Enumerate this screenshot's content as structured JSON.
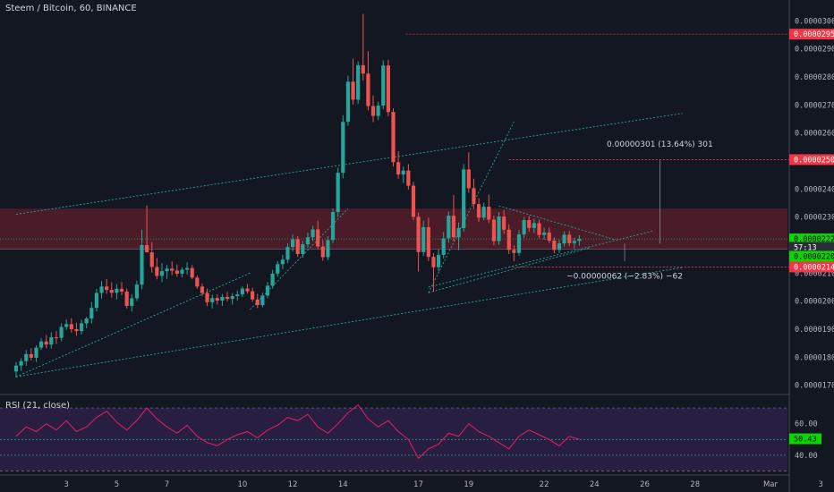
{
  "header": {
    "symbol": "Steem / Bitcoin, 60, BINANCE"
  },
  "rsi_header": {
    "label": "RSI (21, close)"
  },
  "colors": {
    "background": "#131722",
    "up": "#26a69a",
    "down": "#ef5350",
    "grid": "#363a45",
    "text": "#b2b5be",
    "trend": "#26a69a",
    "zone": "#5c1f2a",
    "rsi_line": "#e91e63",
    "rsi_band": "#2a1f45",
    "green_label": "#0bd600",
    "red_label": "#f23645",
    "price_label": "#2a2e39"
  },
  "chart_data": [
    {
      "type": "candlestick",
      "title": "Steem / Bitcoin, 60, BINANCE",
      "x_ticks": [
        "3",
        "5",
        "7",
        "10",
        "12",
        "14",
        "17",
        "19",
        "22",
        "24",
        "26",
        "28",
        "Mar",
        "3"
      ],
      "y_ticks": [
        "0.00003000",
        "0.00002900",
        "0.00002800",
        "0.00002700",
        "0.00002600",
        "0.00002400",
        "0.00002300",
        "0.00002100",
        "0.00002000",
        "0.00001900",
        "0.00001800",
        "0.00001700"
      ],
      "ylim": [
        1.67e-05,
        3.03e-05
      ],
      "price_markers": [
        {
          "value": "0.00002953",
          "price": 2.953e-05,
          "kind": "red"
        },
        {
          "value": "0.00002505",
          "price": 2.505e-05,
          "kind": "red"
        },
        {
          "value": "0.00002222",
          "price": 2.222e-05,
          "kind": "green"
        },
        {
          "value": "57:13",
          "price": 2.192e-05,
          "kind": "dark"
        },
        {
          "value": "0.00002205",
          "price": 2.16e-05,
          "kind": "green"
        },
        {
          "value": "0.00002142",
          "price": 2.122e-05,
          "kind": "red"
        }
      ],
      "annotations": [
        {
          "text": "0.00000301 (13.64%) 301",
          "x_day": 26.6,
          "price": 2.56e-05
        },
        {
          "text": "−0.00000062 (−2.83%) −62",
          "x_day": 25.2,
          "price": 2.09e-05
        }
      ],
      "resistance_zone": [
        2.185e-05,
        2.33e-05
      ],
      "ohlc": [
        [
          1.0,
          1.749e-05,
          1.783e-05,
          1.727e-05,
          1.77e-05
        ],
        [
          1.2,
          1.77e-05,
          1.796e-05,
          1.751e-05,
          1.786e-05
        ],
        [
          1.4,
          1.786e-05,
          1.826e-05,
          1.769e-05,
          1.811e-05
        ],
        [
          1.6,
          1.811e-05,
          1.832e-05,
          1.788e-05,
          1.798e-05
        ],
        [
          1.8,
          1.798e-05,
          1.842e-05,
          1.783e-05,
          1.834e-05
        ],
        [
          2.0,
          1.834e-05,
          1.868e-05,
          1.826e-05,
          1.856e-05
        ],
        [
          2.2,
          1.856e-05,
          1.879e-05,
          1.831e-05,
          1.845e-05
        ],
        [
          2.4,
          1.845e-05,
          1.889e-05,
          1.831e-05,
          1.871e-05
        ],
        [
          2.6,
          1.871e-05,
          1.893e-05,
          1.847e-05,
          1.869e-05
        ],
        [
          2.8,
          1.869e-05,
          1.921e-05,
          1.857e-05,
          1.908e-05
        ],
        [
          3.0,
          1.908e-05,
          1.935e-05,
          1.898e-05,
          1.918e-05
        ],
        [
          3.2,
          1.918e-05,
          1.939e-05,
          1.887e-05,
          1.9e-05
        ],
        [
          3.4,
          1.9e-05,
          1.923e-05,
          1.877e-05,
          1.893e-05
        ],
        [
          3.6,
          1.893e-05,
          1.933e-05,
          1.881e-05,
          1.921e-05
        ],
        [
          3.8,
          1.921e-05,
          1.944e-05,
          1.903e-05,
          1.938e-05
        ],
        [
          4.0,
          1.938e-05,
          1.997e-05,
          1.92e-05,
          1.976e-05
        ],
        [
          4.2,
          1.976e-05,
          2.044e-05,
          1.963e-05,
          2.029e-05
        ],
        [
          4.4,
          2.029e-05,
          2.072e-05,
          2.009e-05,
          2.052e-05
        ],
        [
          4.6,
          2.052e-05,
          2.079e-05,
          2.026e-05,
          2.04e-05
        ],
        [
          4.8,
          2.04e-05,
          2.067e-05,
          2.012e-05,
          2.03e-05
        ],
        [
          5.0,
          2.03e-05,
          2.061e-05,
          2.006e-05,
          2.044e-05
        ],
        [
          5.2,
          2.044e-05,
          2.068e-05,
          2.021e-05,
          2.034e-05
        ],
        [
          5.4,
          2.034e-05,
          2.045e-05,
          1.974e-05,
          1.983e-05
        ],
        [
          5.6,
          1.983e-05,
          2.025e-05,
          1.963e-05,
          2.01e-05
        ],
        [
          5.8,
          2.01e-05,
          2.073e-05,
          2.001e-05,
          2.059e-05
        ],
        [
          6.0,
          2.059e-05,
          2.255e-05,
          2.042e-05,
          2.2e-05
        ],
        [
          6.2,
          2.2e-05,
          2.341e-05,
          2.181e-05,
          2.174e-05
        ],
        [
          6.4,
          2.174e-05,
          2.211e-05,
          2.102e-05,
          2.122e-05
        ],
        [
          6.6,
          2.122e-05,
          2.154e-05,
          2.078e-05,
          2.09e-05
        ],
        [
          6.8,
          2.09e-05,
          2.135e-05,
          2.068e-05,
          2.107e-05
        ],
        [
          7.0,
          2.107e-05,
          2.129e-05,
          2.079e-05,
          2.116e-05
        ],
        [
          7.2,
          2.116e-05,
          2.142e-05,
          2.093e-05,
          2.109e-05
        ],
        [
          7.4,
          2.109e-05,
          2.131e-05,
          2.087e-05,
          2.098e-05
        ],
        [
          7.6,
          2.098e-05,
          2.121e-05,
          2.085e-05,
          2.112e-05
        ],
        [
          7.8,
          2.112e-05,
          2.138e-05,
          2.095e-05,
          2.118e-05
        ],
        [
          8.0,
          2.118e-05,
          2.129e-05,
          2.078e-05,
          2.084e-05
        ],
        [
          8.2,
          2.084e-05,
          2.092e-05,
          2.044e-05,
          2.052e-05
        ],
        [
          8.4,
          2.052e-05,
          2.063e-05,
          2.018e-05,
          2.029e-05
        ],
        [
          8.6,
          2.029e-05,
          2.045e-05,
          1.982e-05,
          1.996e-05
        ],
        [
          8.8,
          1.996e-05,
          2.023e-05,
          1.974e-05,
          2.011e-05
        ],
        [
          9.0,
          2.011e-05,
          2.024e-05,
          1.988e-05,
          2.002e-05
        ],
        [
          9.2,
          2.002e-05,
          2.025e-05,
          1.983e-05,
          2.015e-05
        ],
        [
          9.4,
          2.015e-05,
          2.033e-05,
          1.999e-05,
          2.008e-05
        ],
        [
          9.6,
          2.008e-05,
          2.029e-05,
          1.988e-05,
          2.018e-05
        ],
        [
          9.8,
          2.018e-05,
          2.038e-05,
          2.002e-05,
          2.024e-05
        ],
        [
          10.0,
          2.024e-05,
          2.052e-05,
          2.015e-05,
          2.045e-05
        ],
        [
          10.2,
          2.045e-05,
          2.061e-05,
          2.027e-05,
          2.035e-05
        ],
        [
          10.4,
          2.035e-05,
          2.047e-05,
          1.998e-05,
          2.006e-05
        ],
        [
          10.6,
          2.006e-05,
          2.026e-05,
          1.975e-05,
          1.986e-05
        ],
        [
          10.8,
          1.986e-05,
          2.03e-05,
          1.978e-05,
          2.02e-05
        ],
        [
          11.0,
          2.02e-05,
          2.068e-05,
          2.01e-05,
          2.055e-05
        ],
        [
          11.2,
          2.055e-05,
          2.112e-05,
          2.045e-05,
          2.098e-05
        ],
        [
          11.4,
          2.098e-05,
          2.143e-05,
          2.087e-05,
          2.132e-05
        ],
        [
          11.6,
          2.132e-05,
          2.165e-05,
          2.115e-05,
          2.148e-05
        ],
        [
          11.8,
          2.148e-05,
          2.206e-05,
          2.136e-05,
          2.193e-05
        ],
        [
          12.0,
          2.193e-05,
          2.238e-05,
          2.177e-05,
          2.221e-05
        ],
        [
          12.2,
          2.221e-05,
          2.232e-05,
          2.158e-05,
          2.168e-05
        ],
        [
          12.4,
          2.168e-05,
          2.215e-05,
          2.155e-05,
          2.203e-05
        ],
        [
          12.6,
          2.203e-05,
          2.244e-05,
          2.191e-05,
          2.228e-05
        ],
        [
          12.8,
          2.228e-05,
          2.269e-05,
          2.214e-05,
          2.256e-05
        ],
        [
          13.0,
          2.256e-05,
          2.287e-05,
          2.187e-05,
          2.195e-05
        ],
        [
          13.2,
          2.195e-05,
          2.218e-05,
          2.144e-05,
          2.157e-05
        ],
        [
          13.4,
          2.157e-05,
          2.232e-05,
          2.146e-05,
          2.218e-05
        ],
        [
          13.6,
          2.218e-05,
          2.331e-05,
          2.207e-05,
          2.318e-05
        ],
        [
          13.8,
          2.318e-05,
          2.476e-05,
          2.301e-05,
          2.458e-05
        ],
        [
          14.0,
          2.458e-05,
          2.663e-05,
          2.438e-05,
          2.64e-05
        ],
        [
          14.2,
          2.64e-05,
          2.805e-05,
          2.626e-05,
          2.783e-05
        ],
        [
          14.4,
          2.783e-05,
          2.866e-05,
          2.701e-05,
          2.719e-05
        ],
        [
          14.6,
          2.719e-05,
          2.856e-05,
          2.704e-05,
          2.842e-05
        ],
        [
          14.8,
          2.842e-05,
          3.025e-05,
          2.787e-05,
          2.812e-05
        ],
        [
          15.0,
          2.812e-05,
          2.892e-05,
          2.681e-05,
          2.696e-05
        ],
        [
          15.2,
          2.696e-05,
          2.734e-05,
          2.639e-05,
          2.661e-05
        ],
        [
          15.4,
          2.661e-05,
          2.712e-05,
          2.646e-05,
          2.698e-05
        ],
        [
          15.6,
          2.698e-05,
          2.859e-05,
          2.685e-05,
          2.841e-05
        ],
        [
          15.8,
          2.841e-05,
          2.861e-05,
          2.66e-05,
          2.675e-05
        ],
        [
          16.0,
          2.675e-05,
          2.688e-05,
          2.48e-05,
          2.496e-05
        ],
        [
          16.2,
          2.496e-05,
          2.535e-05,
          2.437e-05,
          2.452e-05
        ],
        [
          16.4,
          2.452e-05,
          2.48e-05,
          2.422e-05,
          2.466e-05
        ],
        [
          16.6,
          2.466e-05,
          2.489e-05,
          2.398e-05,
          2.412e-05
        ],
        [
          16.8,
          2.412e-05,
          2.426e-05,
          2.289e-05,
          2.301e-05
        ],
        [
          17.0,
          2.301e-05,
          2.316e-05,
          2.106e-05,
          2.175e-05
        ],
        [
          17.2,
          2.175e-05,
          2.287e-05,
          2.162e-05,
          2.264e-05
        ],
        [
          17.4,
          2.264e-05,
          2.298e-05,
          2.143e-05,
          2.158e-05
        ],
        [
          17.6,
          2.158e-05,
          2.172e-05,
          2.033e-05,
          2.121e-05
        ],
        [
          17.8,
          2.121e-05,
          2.184e-05,
          2.106e-05,
          2.165e-05
        ],
        [
          18.0,
          2.165e-05,
          2.247e-05,
          2.152e-05,
          2.224e-05
        ],
        [
          18.2,
          2.224e-05,
          2.319e-05,
          2.209e-05,
          2.305e-05
        ],
        [
          18.4,
          2.305e-05,
          2.379e-05,
          2.214e-05,
          2.228e-05
        ],
        [
          18.6,
          2.228e-05,
          2.281e-05,
          2.182e-05,
          2.261e-05
        ],
        [
          18.8,
          2.261e-05,
          2.489e-05,
          2.248e-05,
          2.47e-05
        ],
        [
          19.0,
          2.47e-05,
          2.531e-05,
          2.387e-05,
          2.403e-05
        ],
        [
          19.2,
          2.403e-05,
          2.437e-05,
          2.329e-05,
          2.346e-05
        ],
        [
          19.4,
          2.346e-05,
          2.368e-05,
          2.283e-05,
          2.298e-05
        ],
        [
          19.6,
          2.298e-05,
          2.351e-05,
          2.289e-05,
          2.337e-05
        ],
        [
          19.8,
          2.337e-05,
          2.38e-05,
          2.279e-05,
          2.291e-05
        ],
        [
          20.0,
          2.291e-05,
          2.305e-05,
          2.199e-05,
          2.214e-05
        ],
        [
          20.2,
          2.214e-05,
          2.318e-05,
          2.201e-05,
          2.302e-05
        ],
        [
          20.4,
          2.302e-05,
          2.325e-05,
          2.24e-05,
          2.255e-05
        ],
        [
          20.6,
          2.255e-05,
          2.274e-05,
          2.168e-05,
          2.183e-05
        ],
        [
          20.8,
          2.183e-05,
          2.199e-05,
          2.142e-05,
          2.172e-05
        ],
        [
          21.0,
          2.172e-05,
          2.253e-05,
          2.162e-05,
          2.238e-05
        ],
        [
          21.2,
          2.238e-05,
          2.301e-05,
          2.225e-05,
          2.289e-05
        ],
        [
          21.4,
          2.289e-05,
          2.304e-05,
          2.248e-05,
          2.261e-05
        ],
        [
          21.6,
          2.261e-05,
          2.294e-05,
          2.243e-05,
          2.278e-05
        ],
        [
          21.8,
          2.278e-05,
          2.291e-05,
          2.224e-05,
          2.236e-05
        ],
        [
          22.0,
          2.236e-05,
          2.262e-05,
          2.219e-05,
          2.245e-05
        ],
        [
          22.2,
          2.245e-05,
          2.263e-05,
          2.207e-05,
          2.216e-05
        ],
        [
          22.4,
          2.216e-05,
          2.228e-05,
          2.171e-05,
          2.183e-05
        ],
        [
          22.6,
          2.183e-05,
          2.219e-05,
          2.172e-05,
          2.206e-05
        ],
        [
          22.8,
          2.206e-05,
          2.249e-05,
          2.195e-05,
          2.237e-05
        ],
        [
          23.0,
          2.237e-05,
          2.251e-05,
          2.196e-05,
          2.207e-05
        ],
        [
          23.2,
          2.207e-05,
          2.226e-05,
          2.188e-05,
          2.215e-05
        ],
        [
          23.4,
          2.215e-05,
          2.235e-05,
          2.198e-05,
          2.222e-05
        ]
      ],
      "trendlines": [
        {
          "from": [
            1.0,
            1.73e-05
          ],
          "to": [
            27.5,
            2.12e-05
          ],
          "style": "dotted"
        },
        {
          "from": [
            1.0,
            2.31e-05
          ],
          "to": [
            27.5,
            2.67e-05
          ],
          "style": "dotted"
        },
        {
          "from": [
            1.0,
            1.73e-05
          ],
          "to": [
            10.3,
            2.1e-05
          ],
          "style": "dotted"
        },
        {
          "from": [
            10.3,
            1.97e-05
          ],
          "to": [
            14.2,
            2.33e-05
          ],
          "style": "dotted"
        },
        {
          "from": [
            17.4,
            2.03e-05
          ],
          "to": [
            23.8,
            2.19e-05
          ],
          "style": "dotted"
        },
        {
          "from": [
            17.4,
            2.03e-05
          ],
          "to": [
            20.8,
            2.64e-05
          ],
          "style": "dotted"
        },
        {
          "from": [
            20.2,
            2.34e-05
          ],
          "to": [
            24.8,
            2.22e-05
          ],
          "style": "dotted"
        },
        {
          "from": [
            17.4,
            2.05e-05
          ],
          "to": [
            26.3,
            2.25e-05
          ],
          "style": "dotted"
        }
      ]
    },
    {
      "type": "line",
      "title": "RSI (21, close)",
      "y_ticks": [
        "60.00",
        "40.00"
      ],
      "ylim": [
        28,
        78
      ],
      "bands": [
        30,
        70
      ],
      "levels": [
        50,
        40
      ],
      "last_value": "50.43",
      "x": [
        1.0,
        1.4,
        1.8,
        2.2,
        2.6,
        3.0,
        3.4,
        3.8,
        4.2,
        4.6,
        5.0,
        5.4,
        5.8,
        6.2,
        6.6,
        7.0,
        7.4,
        7.8,
        8.2,
        8.6,
        9.0,
        9.4,
        9.8,
        10.2,
        10.6,
        11.0,
        11.4,
        11.8,
        12.2,
        12.6,
        13.0,
        13.4,
        13.8,
        14.2,
        14.6,
        15.0,
        15.4,
        15.8,
        16.2,
        16.6,
        17.0,
        17.4,
        17.8,
        18.2,
        18.6,
        19.0,
        19.4,
        19.8,
        20.2,
        20.6,
        21.0,
        21.4,
        21.8,
        22.2,
        22.6,
        23.0,
        23.4
      ],
      "values": [
        52,
        58,
        55,
        60,
        56,
        62,
        55,
        58,
        64,
        68,
        61,
        56,
        62,
        70,
        63,
        58,
        54,
        59,
        52,
        48,
        46,
        50,
        53,
        55,
        51,
        56,
        59,
        64,
        62,
        66,
        58,
        54,
        60,
        67,
        72,
        63,
        58,
        62,
        55,
        50,
        38,
        44,
        47,
        54,
        52,
        60,
        55,
        52,
        48,
        44,
        52,
        56,
        53,
        50,
        46,
        52,
        50
      ]
    }
  ]
}
